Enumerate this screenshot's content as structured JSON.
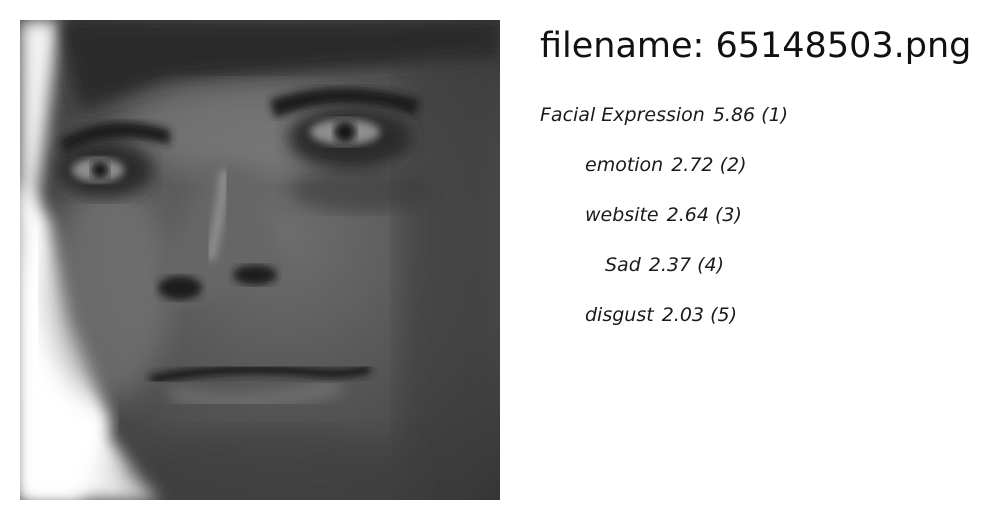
{
  "filename_label": "filename: 65148503.png",
  "labels": [
    {
      "name": "Facial Expression",
      "score": "5.86",
      "rank": "(1)"
    },
    {
      "name": "emotion",
      "score": "2.72",
      "rank": "(2)"
    },
    {
      "name": "website",
      "score": "2.64",
      "rank": "(3)"
    },
    {
      "name": "Sad",
      "score": "2.37",
      "rank": "(4)"
    },
    {
      "name": "disgust",
      "score": "2.03",
      "rank": "(5)"
    }
  ]
}
